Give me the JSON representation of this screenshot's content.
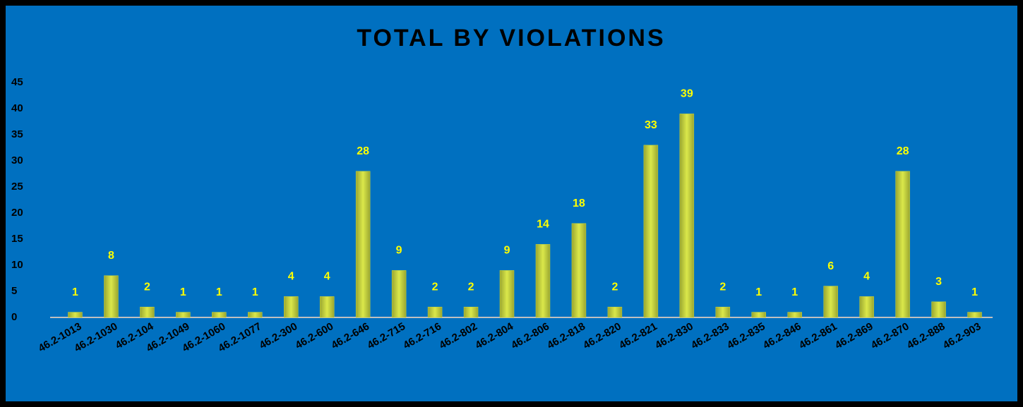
{
  "chart_data": {
    "type": "bar",
    "title": "TOTAL BY VIOLATIONS",
    "categories": [
      "46.2-1013",
      "46.2-1030",
      "46.2-104",
      "46.2-1049",
      "46.2-1060",
      "46.2-1077",
      "46.2-300",
      "46.2-600",
      "46.2-646",
      "46.2-715",
      "46.2-716",
      "46.2-802",
      "46.2-804",
      "46.2-806",
      "46.2-818",
      "46.2-820",
      "46.2-821",
      "46.2-830",
      "46.2-833",
      "46.2-835",
      "46.2-846",
      "46.2-861",
      "46.2-869",
      "46.2-870",
      "46.2-888",
      "46.2-903"
    ],
    "values": [
      1,
      8,
      2,
      1,
      1,
      1,
      4,
      4,
      28,
      9,
      2,
      2,
      9,
      14,
      18,
      2,
      33,
      39,
      2,
      1,
      1,
      6,
      4,
      28,
      3,
      1
    ],
    "color": "#c9d63a",
    "label_color": "#ffff00",
    "background": "#0070c0",
    "ylim": [
      0,
      45
    ],
    "yticks": [
      0,
      5,
      10,
      15,
      20,
      25,
      30,
      35,
      40,
      45
    ],
    "grid": false
  }
}
